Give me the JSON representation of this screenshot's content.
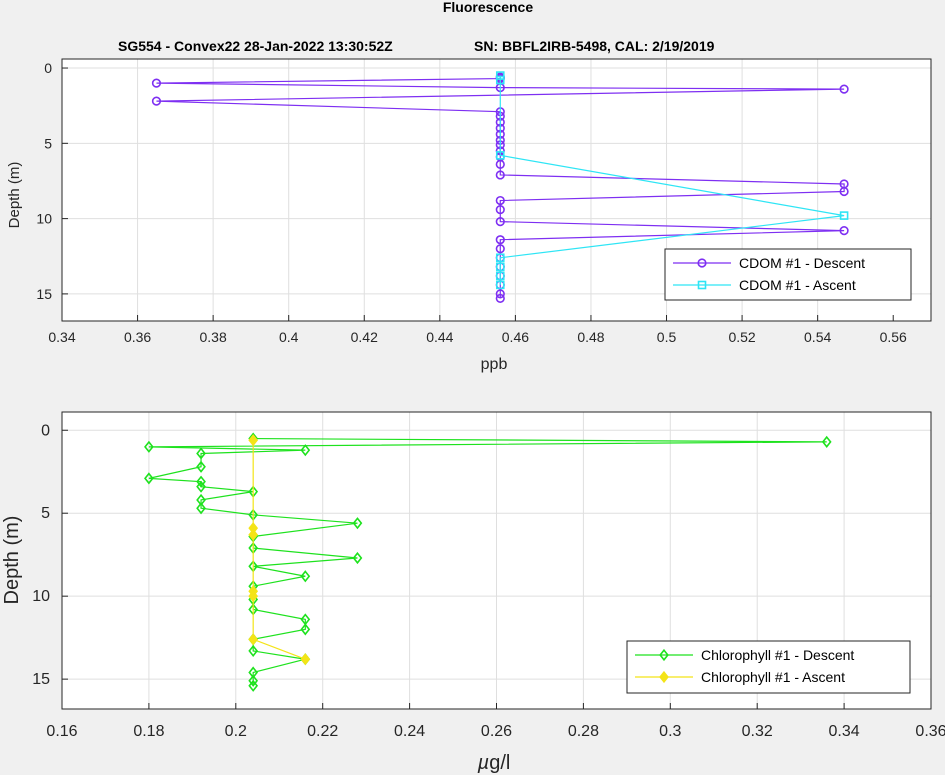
{
  "figure": {
    "title": "Fluorescence",
    "subtitle_left": "SG554 - Convex22 28-Jan-2022 13:30:52Z",
    "subtitle_right": "SN: BBFL2IRB-5498, CAL: 2/19/2019"
  },
  "chart_data": [
    {
      "type": "line",
      "xlabel": "ppb",
      "ylabel": "Depth (m)",
      "xlim": [
        0.34,
        0.57
      ],
      "ylim": [
        -0.6,
        16.8
      ],
      "y_reversed": true,
      "grid": true,
      "legend_position": "bottom-right",
      "xticks": [
        0.34,
        0.36,
        0.38,
        0.4,
        0.42,
        0.44,
        0.46,
        0.48,
        0.5,
        0.52,
        0.54,
        0.56
      ],
      "yticks": [
        0,
        5,
        10,
        15
      ],
      "series": [
        {
          "name": "CDOM #1 - Descent",
          "color": "#7e2ff2",
          "marker": "circle",
          "points": [
            [
              0.456,
              0.6
            ],
            [
              0.456,
              0.7
            ],
            [
              0.365,
              1.0
            ],
            [
              0.456,
              1.3
            ],
            [
              0.547,
              1.4
            ],
            [
              0.365,
              2.2
            ],
            [
              0.456,
              2.9
            ],
            [
              0.456,
              3.2
            ],
            [
              0.456,
              3.6
            ],
            [
              0.456,
              4.0
            ],
            [
              0.456,
              4.4
            ],
            [
              0.456,
              4.8
            ],
            [
              0.456,
              5.1
            ],
            [
              0.456,
              5.5
            ],
            [
              0.456,
              5.9
            ],
            [
              0.456,
              6.4
            ],
            [
              0.456,
              7.1
            ],
            [
              0.547,
              7.7
            ],
            [
              0.547,
              8.2
            ],
            [
              0.456,
              8.8
            ],
            [
              0.456,
              9.4
            ],
            [
              0.456,
              10.2
            ],
            [
              0.547,
              10.8
            ],
            [
              0.456,
              11.4
            ],
            [
              0.456,
              12.0
            ],
            [
              0.456,
              12.6
            ],
            [
              0.456,
              13.2
            ],
            [
              0.456,
              13.8
            ],
            [
              0.456,
              14.4
            ],
            [
              0.456,
              15.0
            ],
            [
              0.456,
              15.3
            ]
          ]
        },
        {
          "name": "CDOM #1 - Ascent",
          "color": "#2ee5f5",
          "marker": "square",
          "points": [
            [
              0.456,
              0.5
            ],
            [
              0.456,
              0.8
            ],
            [
              0.456,
              5.8
            ],
            [
              0.547,
              9.8
            ],
            [
              0.456,
              12.6
            ],
            [
              0.456,
              13.2
            ],
            [
              0.456,
              13.8
            ],
            [
              0.456,
              14.4
            ]
          ]
        }
      ]
    },
    {
      "type": "line",
      "xlabel": "µg/l",
      "xlabel_mu": "µ",
      "xlabel_rest": "g/l",
      "ylabel": "Depth (m)",
      "xlim": [
        0.16,
        0.36
      ],
      "ylim": [
        -1.1,
        16.8
      ],
      "y_reversed": true,
      "grid": true,
      "legend_position": "bottom-right",
      "xticks": [
        0.16,
        0.18,
        0.2,
        0.22,
        0.24,
        0.26,
        0.28,
        0.3,
        0.32,
        0.34,
        0.36
      ],
      "yticks": [
        0,
        5,
        10,
        15
      ],
      "series": [
        {
          "name": "Chlorophyll #1 - Descent",
          "color": "#1ee21e",
          "marker": "diamond",
          "points": [
            [
              0.204,
              0.5
            ],
            [
              0.336,
              0.7
            ],
            [
              0.18,
              1.0
            ],
            [
              0.216,
              1.2
            ],
            [
              0.192,
              1.4
            ],
            [
              0.192,
              2.2
            ],
            [
              0.18,
              2.9
            ],
            [
              0.192,
              3.1
            ],
            [
              0.192,
              3.4
            ],
            [
              0.204,
              3.7
            ],
            [
              0.192,
              4.2
            ],
            [
              0.192,
              4.7
            ],
            [
              0.204,
              5.1
            ],
            [
              0.228,
              5.6
            ],
            [
              0.204,
              6.4
            ],
            [
              0.204,
              7.1
            ],
            [
              0.228,
              7.7
            ],
            [
              0.204,
              8.2
            ],
            [
              0.216,
              8.8
            ],
            [
              0.204,
              9.4
            ],
            [
              0.204,
              10.2
            ],
            [
              0.204,
              10.8
            ],
            [
              0.216,
              11.4
            ],
            [
              0.216,
              12.0
            ],
            [
              0.204,
              12.6
            ],
            [
              0.204,
              13.3
            ],
            [
              0.216,
              13.8
            ],
            [
              0.204,
              14.6
            ],
            [
              0.204,
              15.1
            ],
            [
              0.204,
              15.4
            ]
          ]
        },
        {
          "name": "Chlorophyll #1 - Ascent",
          "color": "#f4e417",
          "marker": "diamond",
          "points": [
            [
              0.204,
              0.6
            ],
            [
              0.204,
              5.9
            ],
            [
              0.204,
              6.3
            ],
            [
              0.204,
              9.7
            ],
            [
              0.204,
              10.0
            ],
            [
              0.204,
              12.6
            ],
            [
              0.216,
              13.8
            ]
          ]
        }
      ]
    }
  ]
}
